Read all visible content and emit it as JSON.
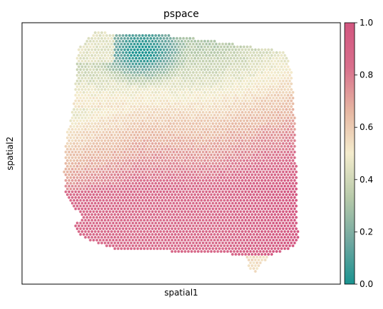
{
  "chart_data": {
    "type": "scatter",
    "title": "pspace",
    "xlabel": "spatial1",
    "ylabel": "spatial2",
    "x_ticks": [],
    "y_ticks": [],
    "colorbar": {
      "min": 0.0,
      "max": 1.0,
      "tick_values": [
        0.0,
        0.2,
        0.4,
        0.6,
        0.8,
        1.0
      ],
      "tick_labels": [
        "0.0",
        "0.2",
        "0.4",
        "0.6",
        "0.8",
        "1.0"
      ],
      "colormap": [
        "#1a9390",
        "#6fa7a0",
        "#b6c9a9",
        "#f4eccd",
        "#e6b7a2",
        "#d86f8c",
        "#d2557f"
      ]
    },
    "marker_color_default": "#d2557f",
    "description_of_spots": "Hexagonal grid of tissue spots; teal (low pspace) cluster at top center, beige band across upper middle, pink (high pspace) over lower/right region"
  }
}
